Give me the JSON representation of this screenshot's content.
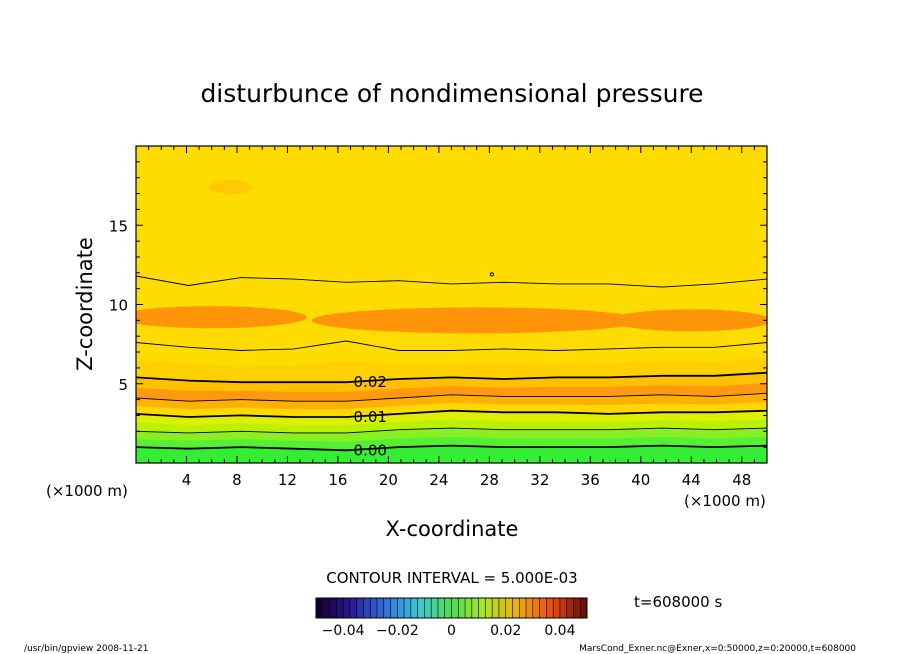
{
  "chart_data": {
    "type": "heatmap",
    "title": "disturbunce of nondimensional pressure",
    "xlabel": "X-coordinate",
    "ylabel": "Z-coordinate",
    "x_unit": "(×1000 m)",
    "y_unit": "(×1000 m)",
    "xlim": [
      0,
      50
    ],
    "ylim": [
      0,
      20
    ],
    "x_ticks": [
      4,
      8,
      12,
      16,
      20,
      24,
      28,
      32,
      36,
      40,
      44,
      48
    ],
    "y_ticks": [
      5,
      10,
      15
    ],
    "contour_interval_label": "CONTOUR INTERVAL = 5.000E-03",
    "time_label": "t=608000 s",
    "contours": [
      {
        "level": 0.0,
        "label": "0.00",
        "z_km": [
          1.0,
          0.9,
          1.0,
          0.9,
          0.8,
          1.0,
          1.1,
          1.0,
          1.0,
          1.0,
          1.1,
          1.0,
          1.1
        ],
        "label_x": 17
      },
      {
        "level": 0.005,
        "z_km": [
          2.0,
          1.9,
          2.0,
          1.9,
          1.9,
          2.1,
          2.2,
          2.1,
          2.1,
          2.1,
          2.2,
          2.1,
          2.2
        ]
      },
      {
        "level": 0.01,
        "label": "0.01",
        "z_km": [
          3.1,
          2.9,
          3.0,
          2.9,
          2.9,
          3.1,
          3.3,
          3.2,
          3.2,
          3.1,
          3.2,
          3.2,
          3.3
        ],
        "label_x": 17
      },
      {
        "level": 0.015,
        "z_km": [
          4.1,
          3.9,
          4.0,
          3.9,
          3.9,
          4.1,
          4.3,
          4.2,
          4.2,
          4.2,
          4.3,
          4.2,
          4.4
        ]
      },
      {
        "level": 0.02,
        "label": "0.02",
        "z_km": [
          5.4,
          5.2,
          5.1,
          5.1,
          5.1,
          5.3,
          5.4,
          5.3,
          5.4,
          5.4,
          5.5,
          5.5,
          5.7
        ],
        "label_x": 17
      },
      {
        "level": 0.025,
        "z_km": [
          7.6,
          7.3,
          7.1,
          7.2,
          7.7,
          7.1,
          7.1,
          7.2,
          7.1,
          7.2,
          7.3,
          7.3,
          7.6
        ]
      },
      {
        "level": 0.03,
        "z_km": [
          11.8,
          11.2,
          11.7,
          11.6,
          11.4,
          11.5,
          11.3,
          11.4,
          11.3,
          11.3,
          11.1,
          11.3,
          11.6
        ]
      }
    ],
    "colorbar": {
      "range": [
        -0.05,
        0.05
      ],
      "tick_values": [
        -0.04,
        -0.02,
        0,
        0.02,
        0.04
      ],
      "tick_labels": [
        "−0.04",
        "−0.02",
        "0",
        "0.02",
        "0.04"
      ]
    },
    "colors": {
      "bands": [
        "#33ee33",
        "#55f033",
        "#88f022",
        "#bbf000",
        "#ddf000",
        "#ffd800",
        "#ffb000",
        "#ff9a10",
        "#ffc000",
        "#ffd000",
        "#ffdc00"
      ]
    }
  },
  "footer": {
    "left": "/usr/bin/gpview   2008-11-21",
    "right": "MarsCond_Exner.nc@Exner,x=0:50000,z=0:20000,t=608000"
  }
}
